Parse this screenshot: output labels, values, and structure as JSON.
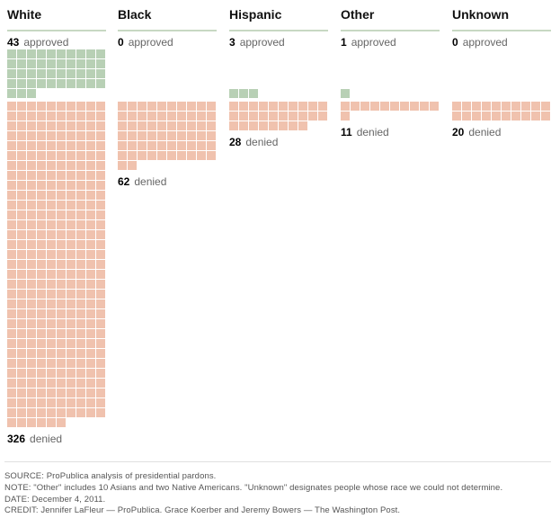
{
  "chart_data": {
    "type": "waffle",
    "title": "",
    "units_per_square": 1,
    "squares_per_row": 10,
    "categories": [
      "White",
      "Black",
      "Hispanic",
      "Other",
      "Unknown"
    ],
    "series": [
      {
        "name": "approved",
        "label": "approved",
        "color": "#b8d0b5",
        "values": [
          43,
          0,
          3,
          1,
          0
        ]
      },
      {
        "name": "denied",
        "label": "denied",
        "color": "#f0c2ae",
        "values": [
          326,
          62,
          28,
          11,
          20
        ]
      }
    ]
  },
  "columns": [
    {
      "title": "White",
      "approved": "43",
      "denied": "326"
    },
    {
      "title": "Black",
      "approved": "0",
      "denied": "62"
    },
    {
      "title": "Hispanic",
      "approved": "3",
      "denied": "28"
    },
    {
      "title": "Other",
      "approved": "1",
      "denied": "11"
    },
    {
      "title": "Unknown",
      "approved": "0",
      "denied": "20"
    }
  ],
  "labels": {
    "approved": "approved",
    "denied": "denied"
  },
  "footer": {
    "source": "SOURCE: ProPublica analysis of presidential pardons.",
    "note": "NOTE: \"Other\" includes 10 Asians and two Native Americans. \"Unknown\" designates people whose race we could not determine.",
    "date": "DATE: December 4, 2011.",
    "credit": "CREDIT: Jennifer LaFleur — ProPublica. Grace Koerber and Jeremy Bowers — The Washington Post."
  }
}
